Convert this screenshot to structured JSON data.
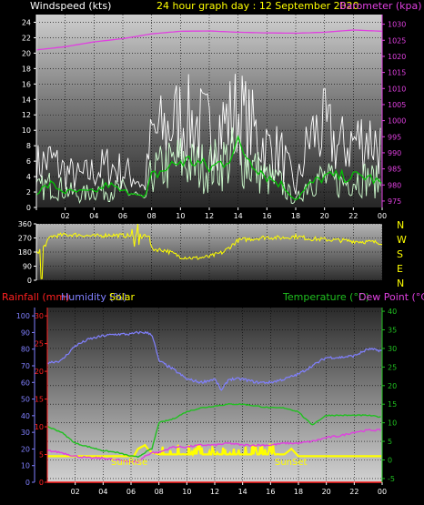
{
  "header": {
    "title": "24 hour graph day : 12 September 2020",
    "left_label": "Windspeed (kts)",
    "right_label": "Barometer (kpa)"
  },
  "compass_labels": [
    "N",
    "W",
    "S",
    "E",
    "N"
  ],
  "bottom_header": {
    "rainfall": "Rainfall (mm)",
    "humidity": "Humidity (%)",
    "solar": "Solar",
    "temperature": "Temperature (°C)",
    "dewpoint": "Dew Point (°C)"
  },
  "annotations": {
    "sunrise": "SunRise",
    "sunset": "SunSet"
  },
  "colors": {
    "background": "#000000",
    "plot_top": "#c8c8c8",
    "plot_bottom": "#2a2a2a",
    "wind_gust": "#ffffff",
    "wind_avg": "#d0ffd0",
    "wind_mean": "#00c800",
    "barometer": "#e040e0",
    "direction": "#ffff00",
    "rainfall": "#ff2020",
    "humidity": "#8080ff",
    "solar": "#ffff00",
    "temperature": "#20c020",
    "dewpoint": "#e040e0",
    "title": "#ffff00"
  },
  "chart_data": [
    {
      "type": "line",
      "name": "windspeed-barometer",
      "x_ticks": [
        "02",
        "04",
        "06",
        "08",
        "10",
        "12",
        "14",
        "16",
        "18",
        "20",
        "22",
        "00"
      ],
      "y_left": {
        "label": "Windspeed (kts)",
        "ticks": [
          0,
          2,
          4,
          6,
          8,
          10,
          12,
          14,
          16,
          18,
          20,
          22,
          24
        ],
        "ylim": [
          0,
          25
        ]
      },
      "y_right": {
        "label": "Barometer (kpa)",
        "ticks": [
          975,
          980,
          985,
          990,
          995,
          1000,
          1005,
          1010,
          1015,
          1020,
          1025,
          1030
        ],
        "ylim": [
          973,
          1033
        ]
      },
      "x_range_hours": [
        0,
        24
      ],
      "series": [
        {
          "role": "gust",
          "hours": [
            0,
            1,
            2,
            3,
            4,
            5,
            6,
            7,
            7.5,
            8,
            9,
            10,
            11,
            12,
            13,
            14,
            15,
            16,
            17,
            18,
            19,
            20,
            21,
            22,
            23,
            24
          ],
          "values": [
            7,
            8,
            6,
            5,
            6,
            7,
            6,
            5,
            3,
            12,
            13,
            15,
            14,
            13,
            14,
            16,
            13,
            10,
            9,
            3,
            12,
            13,
            10,
            11,
            12,
            10
          ]
        },
        {
          "role": "avg",
          "hours": [
            0,
            1,
            2,
            3,
            4,
            5,
            6,
            7,
            7.5,
            8,
            9,
            10,
            11,
            12,
            13,
            14,
            15,
            16,
            17,
            18,
            19,
            20,
            21,
            22,
            23,
            24
          ],
          "values": [
            3,
            4,
            3,
            2,
            3,
            3,
            3,
            2,
            1,
            6,
            7,
            8,
            7,
            7,
            8,
            9,
            7,
            5,
            4,
            1,
            5,
            5,
            4,
            5,
            5,
            4
          ]
        },
        {
          "role": "mean",
          "hours": [
            0,
            1,
            2,
            3,
            4,
            5,
            6,
            7,
            7.5,
            8,
            9,
            10,
            11,
            12,
            13,
            14,
            15,
            16,
            17,
            18,
            19,
            20,
            21,
            22,
            23,
            24
          ],
          "values": [
            2,
            3,
            2,
            2,
            2,
            3,
            2,
            2,
            1,
            4,
            5,
            6,
            6,
            5,
            6,
            8,
            6,
            4,
            3,
            1,
            3,
            4,
            4,
            4,
            4,
            3
          ]
        },
        {
          "role": "barometer",
          "hours": [
            0,
            2,
            4,
            6,
            8,
            10,
            12,
            14,
            16,
            18,
            20,
            22,
            23,
            24
          ],
          "values": [
            1022,
            1023,
            1024.5,
            1025.5,
            1027,
            1027.8,
            1027.9,
            1027.5,
            1027.3,
            1027.2,
            1027.5,
            1028.2,
            1028,
            1027.8
          ]
        }
      ]
    },
    {
      "type": "line",
      "name": "wind-direction",
      "y_ticks": [
        0,
        90,
        180,
        270,
        360
      ],
      "ylim": [
        0,
        360
      ],
      "series": [
        {
          "role": "direction",
          "hours": [
            0,
            0.5,
            1,
            2,
            3,
            4,
            5,
            6,
            7,
            7.8,
            8,
            9,
            10,
            11,
            12,
            13,
            14,
            15,
            16,
            17,
            18,
            19,
            20,
            21,
            22,
            23,
            24
          ],
          "values": [
            175,
            210,
            280,
            290,
            290,
            280,
            290,
            285,
            285,
            290,
            200,
            190,
            150,
            140,
            150,
            180,
            255,
            265,
            275,
            270,
            280,
            265,
            260,
            255,
            250,
            245,
            240
          ]
        }
      ]
    },
    {
      "type": "line",
      "name": "climate",
      "y_left_outer": {
        "label": "Humidity (%)",
        "ticks": [
          0,
          10,
          20,
          30,
          40,
          50,
          60,
          70,
          80,
          90,
          100
        ],
        "ylim": [
          0,
          105
        ]
      },
      "y_left_inner": {
        "label": "Rainfall (mm)",
        "ticks": [
          0,
          5,
          10,
          15,
          20,
          25,
          30
        ],
        "ylim": [
          0,
          31.5
        ]
      },
      "y_right": {
        "label": "Temperature (°C)",
        "ticks": [
          -5,
          0,
          5,
          10,
          15,
          20,
          25,
          30,
          35,
          40
        ],
        "ylim": [
          -6,
          41
        ]
      },
      "series": [
        {
          "role": "humidity",
          "hours": [
            0,
            1,
            2,
            3,
            4,
            5,
            6,
            6.5,
            7,
            7.5,
            8,
            9,
            10,
            11,
            12,
            12.5,
            13,
            14,
            15,
            16,
            17,
            18,
            19,
            20,
            21,
            22,
            23,
            24
          ],
          "values": [
            72,
            73,
            82,
            86,
            88,
            89,
            89,
            90,
            90,
            89,
            73,
            68,
            62,
            60,
            62,
            55,
            62,
            62,
            60,
            60,
            62,
            65,
            70,
            75,
            75,
            76,
            80,
            79
          ]
        },
        {
          "role": "temperature",
          "hours": [
            0,
            1,
            2,
            3,
            4,
            5,
            6,
            6.5,
            7,
            7.5,
            8,
            9,
            10,
            11,
            12,
            13,
            14,
            15,
            16,
            17,
            18,
            18.5,
            19,
            20,
            21,
            22,
            23,
            24
          ],
          "values": [
            9,
            7.5,
            4.5,
            3.5,
            2.5,
            2,
            1,
            0.8,
            2,
            3,
            10,
            11,
            13,
            14,
            14.5,
            15,
            15,
            14.5,
            14,
            14,
            13,
            11,
            9.5,
            12,
            12,
            12,
            12,
            11.5
          ]
        },
        {
          "role": "dewpoint",
          "hours": [
            0,
            1,
            2,
            3,
            4,
            5,
            6,
            6.5,
            7,
            7.5,
            8,
            9,
            10,
            11,
            12,
            13,
            14,
            15,
            16,
            17,
            18,
            19,
            20,
            21,
            22,
            23,
            24
          ],
          "values": [
            2.5,
            2,
            1,
            0.5,
            0.5,
            0,
            -0.5,
            -0.5,
            1,
            2,
            2,
            3.5,
            3.5,
            4,
            4,
            4.5,
            4,
            4,
            4,
            4.5,
            4.5,
            5,
            6,
            6.5,
            7.5,
            8,
            8
          ]
        },
        {
          "role": "rainfall",
          "hours": [
            0,
            24
          ],
          "values": [
            0,
            0
          ]
        },
        {
          "role": "solar",
          "hours": [
            0,
            6.2,
            6.5,
            7,
            7.2,
            7.5,
            8,
            12,
            17,
            17.5,
            18,
            24
          ],
          "values": [
            1,
            1,
            3,
            4,
            3,
            2,
            1.5,
            1.5,
            1.5,
            3,
            1,
            1
          ]
        }
      ]
    }
  ]
}
